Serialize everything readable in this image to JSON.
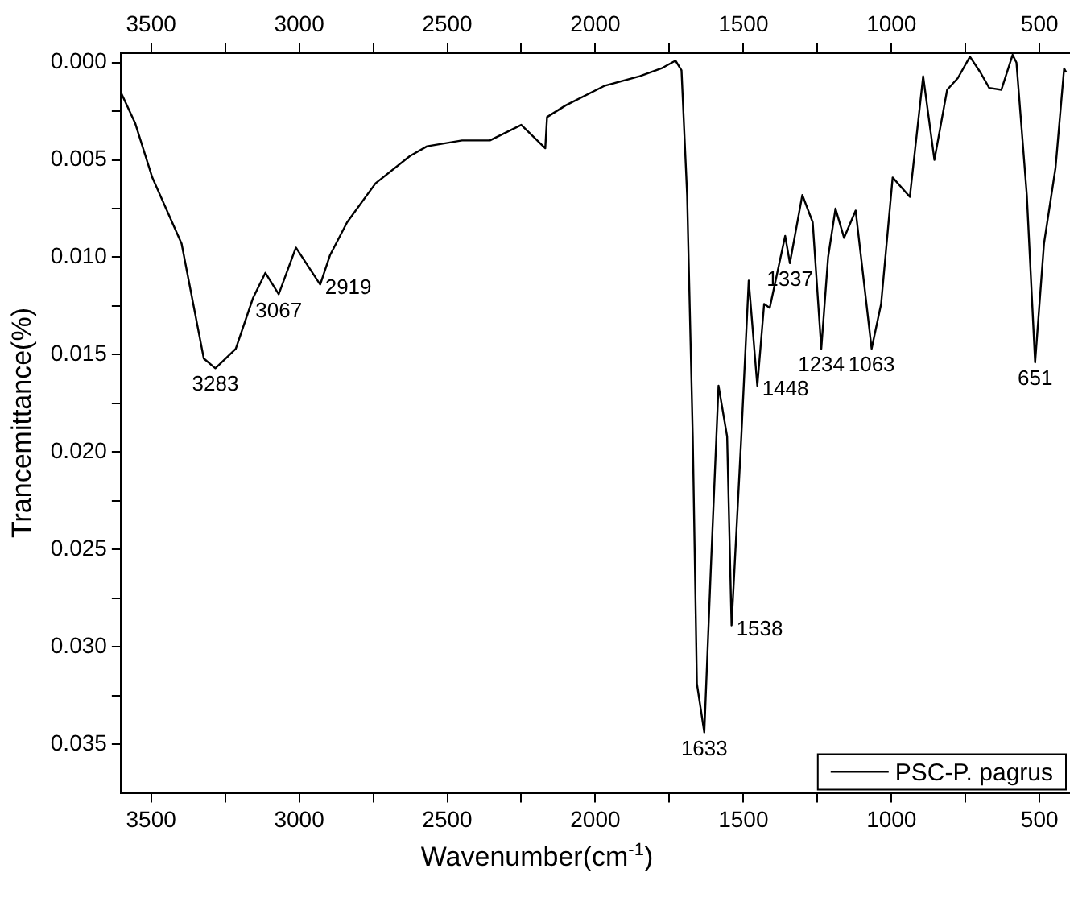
{
  "chart_data": {
    "type": "line",
    "xlabel": "Wavenumber(cm$^{-1}$)",
    "ylabel": "Trancemittance(%)",
    "xlim": [
      3600,
      400
    ],
    "xticks": [
      3500,
      {
        "value": 3250,
        "label": null
      },
      3000,
      {
        "value": 2750,
        "label": null
      },
      2500,
      {
        "value": 2250,
        "label": null
      },
      2000,
      {
        "value": 1750,
        "label": null
      },
      1500,
      {
        "value": 1250,
        "label": null
      },
      1000,
      {
        "value": 750,
        "label": null
      },
      500
    ],
    "x2lim": [
      3600,
      400
    ],
    "x2ticks": [
      3500,
      {
        "value": 3250,
        "label": null
      },
      3000,
      {
        "value": 2750,
        "label": null
      },
      2500,
      {
        "value": 2250,
        "label": null
      },
      2000,
      {
        "value": 1750,
        "label": null
      },
      1500,
      {
        "value": 1250,
        "label": null
      },
      1000,
      {
        "value": 750,
        "label": null
      },
      500
    ],
    "ylim": [
      0.0375,
      -0.0005
    ],
    "yticks": [
      {
        "value": 0,
        "label": "0.000"
      },
      {
        "value": 0.0025,
        "label": null
      },
      {
        "value": 0.005,
        "label": "0.005"
      },
      {
        "value": 0.0075,
        "label": null
      },
      {
        "value": 0.01,
        "label": "0.010"
      },
      {
        "value": 0.0125,
        "label": null
      },
      {
        "value": 0.015,
        "label": "0.015"
      },
      {
        "value": 0.0175,
        "label": null
      },
      {
        "value": 0.02,
        "label": "0.020"
      },
      {
        "value": 0.0225,
        "label": null
      },
      {
        "value": 0.025,
        "label": "0.025"
      },
      {
        "value": 0.0275,
        "label": null
      },
      {
        "value": 0.03,
        "label": "0.030"
      },
      {
        "value": 0.0325,
        "label": null
      },
      {
        "value": 0.035,
        "label": "0.035"
      }
    ],
    "grid": false,
    "legend": "bottom right",
    "marker": "none",
    "line_style": "solid",
    "series": [
      {
        "name": "PSC-P. pagrus",
        "color": "#000000",
        "x": [
          3600,
          3554,
          3496,
          3397,
          3322,
          3283,
          3214,
          3156,
          3114,
          3069,
          3011,
          2929,
          2896,
          2838,
          2742,
          2626,
          2568,
          2450,
          2356,
          2250,
          2169,
          2163,
          2100,
          1970,
          1850,
          1777,
          1729,
          1709,
          1690,
          1671,
          1657,
          1632,
          1610,
          1584,
          1555,
          1540,
          1507,
          1482,
          1453,
          1430,
          1411,
          1359,
          1343,
          1301,
          1266,
          1237,
          1214,
          1189,
          1160,
          1121,
          1067,
          1035,
          996,
          938,
          893,
          855,
          812,
          776,
          735,
          700,
          670,
          629,
          591,
          578,
          543,
          515,
          485,
          446,
          417,
          410
        ],
        "values": [
          0.0016,
          0.0031,
          0.0059,
          0.0093,
          0.0152,
          0.0157,
          0.0147,
          0.0121,
          0.0108,
          0.0119,
          0.0095,
          0.0114,
          0.0099,
          0.0082,
          0.0062,
          0.0048,
          0.0043,
          0.004,
          0.004,
          0.0032,
          0.0044,
          0.0028,
          0.0022,
          0.0012,
          0.0007,
          0.0003,
          -0.0001,
          0.0004,
          0.0068,
          0.0192,
          0.0319,
          0.0344,
          0.026,
          0.0166,
          0.0192,
          0.0289,
          0.0192,
          0.0112,
          0.0166,
          0.0124,
          0.0126,
          0.0089,
          0.0103,
          0.0068,
          0.0082,
          0.0147,
          0.01,
          0.0075,
          0.009,
          0.0076,
          0.0147,
          0.0124,
          0.0059,
          0.0069,
          0.0007,
          0.005,
          0.0014,
          0.0008,
          -0.0003,
          0.0005,
          0.0013,
          0.0014,
          -0.0004,
          0.0,
          0.0068,
          0.0154,
          0.0093,
          0.0054,
          0.0003,
          0.0005
        ]
      }
    ],
    "annotations": [
      {
        "text": "3283",
        "x": 3283,
        "y": 0.0157
      },
      {
        "text": "3067",
        "x": 3069,
        "y": 0.0119
      },
      {
        "text": "2919",
        "x": 2929,
        "y": 0.0114
      },
      {
        "text": "1633",
        "x": 1632,
        "y": 0.0344
      },
      {
        "text": "1538",
        "x": 1540,
        "y": 0.0289
      },
      {
        "text": "1448",
        "x": 1453,
        "y": 0.0166
      },
      {
        "text": "1337",
        "x": 1343,
        "y": 0.0103
      },
      {
        "text": "1234",
        "x": 1237,
        "y": 0.0147
      },
      {
        "text": "1063",
        "x": 1067,
        "y": 0.0147
      },
      {
        "text": "651",
        "x": 515,
        "y": 0.0154
      }
    ]
  }
}
